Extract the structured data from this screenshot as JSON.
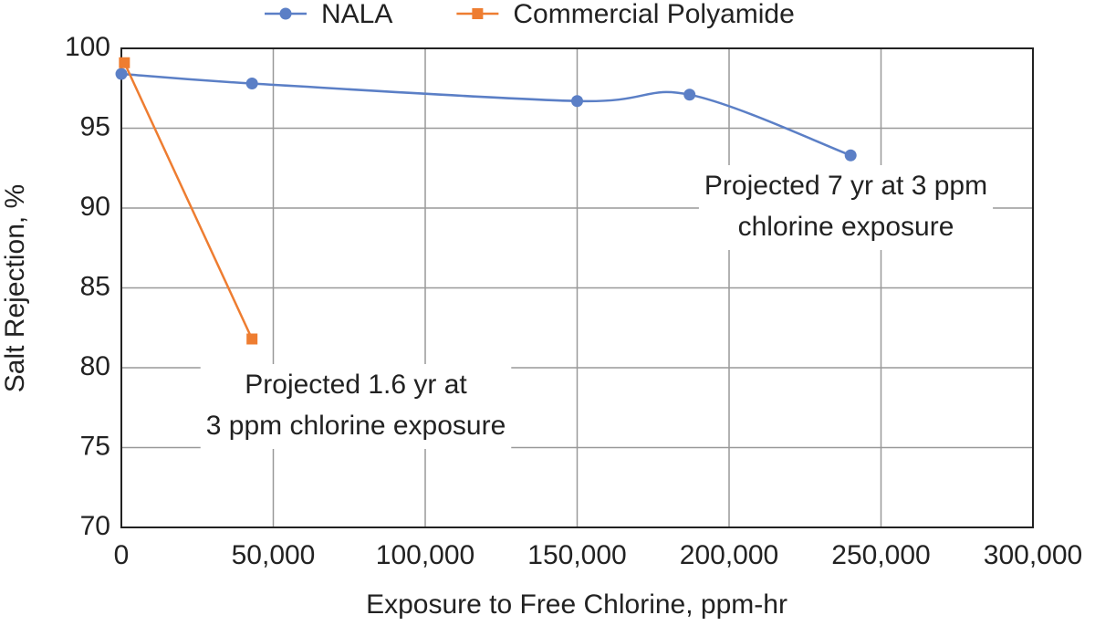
{
  "chart_data": {
    "type": "line",
    "xlabel": "Exposure to Free Chlorine, ppm-hr",
    "ylabel": "Salt Rejection, %",
    "series": [
      {
        "name": "NALA",
        "color": "#5b7fc6",
        "marker": "circle",
        "x": [
          0,
          43000,
          150000,
          187000,
          240000
        ],
        "values": [
          98.4,
          97.8,
          96.7,
          97.1,
          93.3
        ]
      },
      {
        "name": "Commercial Polyamide",
        "color": "#ee7d31",
        "marker": "square",
        "x": [
          1000,
          43000
        ],
        "values": [
          99.1,
          81.8
        ]
      }
    ],
    "xlim": [
      0,
      300000
    ],
    "xticks": [
      0,
      {
        "value": 50000,
        "label": "50,000"
      },
      {
        "value": 100000,
        "label": "100,000"
      },
      {
        "value": 150000,
        "label": "150,000"
      },
      {
        "value": 200000,
        "label": "200,000"
      },
      {
        "value": 250000,
        "label": "250,000"
      },
      {
        "value": 300000,
        "label": "300,000"
      }
    ],
    "ylim": [
      70,
      100
    ],
    "yticks": [
      70,
      75,
      80,
      85,
      90,
      95,
      100
    ],
    "grid": true,
    "legend": "top",
    "annotations": [
      [
        "Projected 7 yr at 3 ppm",
        "chlorine exposure"
      ],
      [
        "Projected 1.6 yr at",
        "3 ppm chlorine exposure"
      ]
    ]
  }
}
